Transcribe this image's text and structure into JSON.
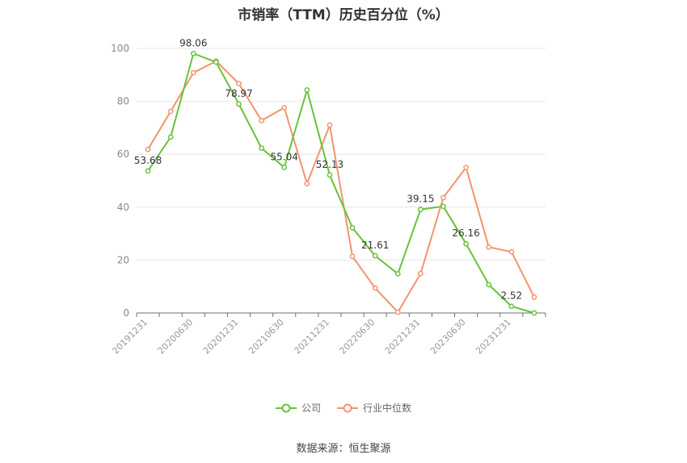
{
  "page": {
    "title": "市销率（TTM）历史百分位（%）",
    "source": "数据来源：恒生聚源"
  },
  "chart_data": {
    "type": "line",
    "title": "市销率（TTM）历史百分位（%）",
    "xlabel": "",
    "ylabel": "",
    "ylim": [
      0,
      100
    ],
    "yticks": [
      0,
      20,
      40,
      60,
      80,
      100
    ],
    "grid": true,
    "legend": "bottom-center",
    "x": [
      "20191231",
      "20200331",
      "20200630",
      "20200930",
      "20201231",
      "20210331",
      "20210630",
      "20210930",
      "20211231",
      "20220331",
      "20220630",
      "20220930",
      "20221231",
      "20230331",
      "20230630",
      "20230930",
      "20231231",
      "20240331"
    ],
    "xtick_labels": [
      "20191231",
      "20200630",
      "20201231",
      "20210630",
      "20211231",
      "20220630",
      "20221231",
      "20230630",
      "20231231"
    ],
    "series": [
      {
        "name": "公司",
        "color": "#66c33a",
        "values": [
          53.68,
          66.5,
          98.06,
          94.8,
          78.97,
          62.3,
          55.04,
          84.3,
          52.13,
          32.2,
          21.61,
          14.8,
          39.15,
          40.3,
          26.16,
          10.7,
          2.52,
          0
        ],
        "labels": {
          "0": "53.68",
          "2": "98.06",
          "4": "78.97",
          "6": "55.04",
          "8": "52.13",
          "10": "21.61",
          "12": "39.15",
          "14": "26.16",
          "16": "2.52"
        }
      },
      {
        "name": "行业中位数",
        "color": "#f3946b",
        "values": [
          61.8,
          76.2,
          90.8,
          95.2,
          86.7,
          72.7,
          77.6,
          48.9,
          71.0,
          21.4,
          9.4,
          0.3,
          14.9,
          43.6,
          55.0,
          24.9,
          23.1,
          6.0
        ]
      }
    ]
  }
}
